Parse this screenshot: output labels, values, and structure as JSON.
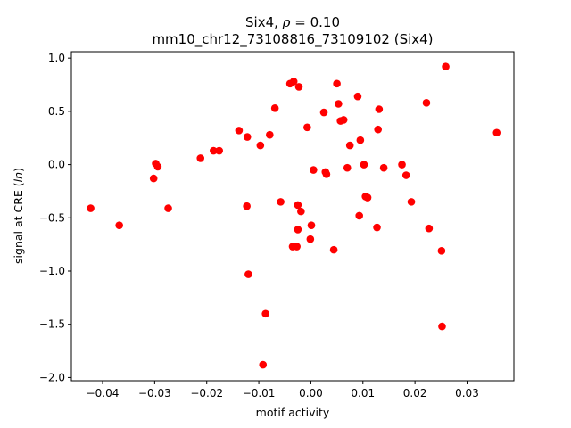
{
  "chart_data": {
    "type": "scatter",
    "title_main": "Six4, ",
    "title_rho": "ρ",
    "title_value": " = 0.10",
    "subtitle": "mm10_chr12_73108816_73109102 (Six4)",
    "xlabel": "motif activity",
    "ylabel_prefix": "signal at CRE (",
    "ylabel_italic": "ln",
    "ylabel_suffix": ")",
    "xlim": [
      -0.046,
      0.039
    ],
    "ylim": [
      -2.03,
      1.06
    ],
    "xticks": [
      -0.04,
      -0.03,
      -0.02,
      -0.01,
      0.0,
      0.01,
      0.02,
      0.03
    ],
    "xtick_labels": [
      "−0.04",
      "−0.03",
      "−0.02",
      "−0.01",
      "0.00",
      "0.01",
      "0.02",
      "0.03"
    ],
    "yticks": [
      -2.0,
      -1.5,
      -1.0,
      -0.5,
      0.0,
      0.5,
      1.0
    ],
    "ytick_labels": [
      "−2.0",
      "−1.5",
      "−1.0",
      "−0.5",
      "0.0",
      "0.5",
      "1.0"
    ],
    "marker_color": "#ff0000",
    "grid": false,
    "points": [
      [
        -0.0423,
        -0.41
      ],
      [
        -0.0368,
        -0.57
      ],
      [
        -0.0302,
        -0.13
      ],
      [
        -0.0298,
        0.01
      ],
      [
        -0.0294,
        -0.02
      ],
      [
        -0.0274,
        -0.41
      ],
      [
        -0.0212,
        0.06
      ],
      [
        -0.0187,
        0.13
      ],
      [
        -0.0176,
        0.13
      ],
      [
        -0.0138,
        0.32
      ],
      [
        -0.0123,
        -0.39
      ],
      [
        -0.0122,
        0.26
      ],
      [
        -0.012,
        -1.03
      ],
      [
        -0.0097,
        0.18
      ],
      [
        -0.0092,
        -1.88
      ],
      [
        -0.0087,
        -1.4
      ],
      [
        -0.0079,
        0.28
      ],
      [
        -0.0069,
        0.53
      ],
      [
        -0.0058,
        -0.35
      ],
      [
        -0.004,
        0.76
      ],
      [
        -0.0035,
        -0.77
      ],
      [
        -0.0033,
        0.78
      ],
      [
        -0.0027,
        -0.77
      ],
      [
        -0.0025,
        -0.38
      ],
      [
        -0.0025,
        -0.61
      ],
      [
        -0.0023,
        0.73
      ],
      [
        -0.0019,
        -0.44
      ],
      [
        -0.0007,
        0.35
      ],
      [
        -0.0001,
        -0.7
      ],
      [
        0.0001,
        -0.57
      ],
      [
        0.0005,
        -0.05
      ],
      [
        0.0025,
        0.49
      ],
      [
        0.0028,
        -0.07
      ],
      [
        0.003,
        -0.09
      ],
      [
        0.0044,
        -0.8
      ],
      [
        0.005,
        0.76
      ],
      [
        0.0053,
        0.57
      ],
      [
        0.0057,
        0.41
      ],
      [
        0.0063,
        0.42
      ],
      [
        0.007,
        -0.03
      ],
      [
        0.0075,
        0.18
      ],
      [
        0.009,
        0.64
      ],
      [
        0.0093,
        -0.48
      ],
      [
        0.0095,
        0.23
      ],
      [
        0.0102,
        0.0
      ],
      [
        0.0105,
        -0.3
      ],
      [
        0.0109,
        -0.31
      ],
      [
        0.0127,
        -0.59
      ],
      [
        0.0129,
        0.33
      ],
      [
        0.0131,
        0.52
      ],
      [
        0.014,
        -0.03
      ],
      [
        0.0175,
        0.0
      ],
      [
        0.0183,
        -0.1
      ],
      [
        0.0193,
        -0.35
      ],
      [
        0.0222,
        0.58
      ],
      [
        0.0227,
        -0.6
      ],
      [
        0.0251,
        -0.81
      ],
      [
        0.0252,
        -1.52
      ],
      [
        0.0259,
        0.92
      ],
      [
        0.0357,
        0.3
      ]
    ]
  }
}
